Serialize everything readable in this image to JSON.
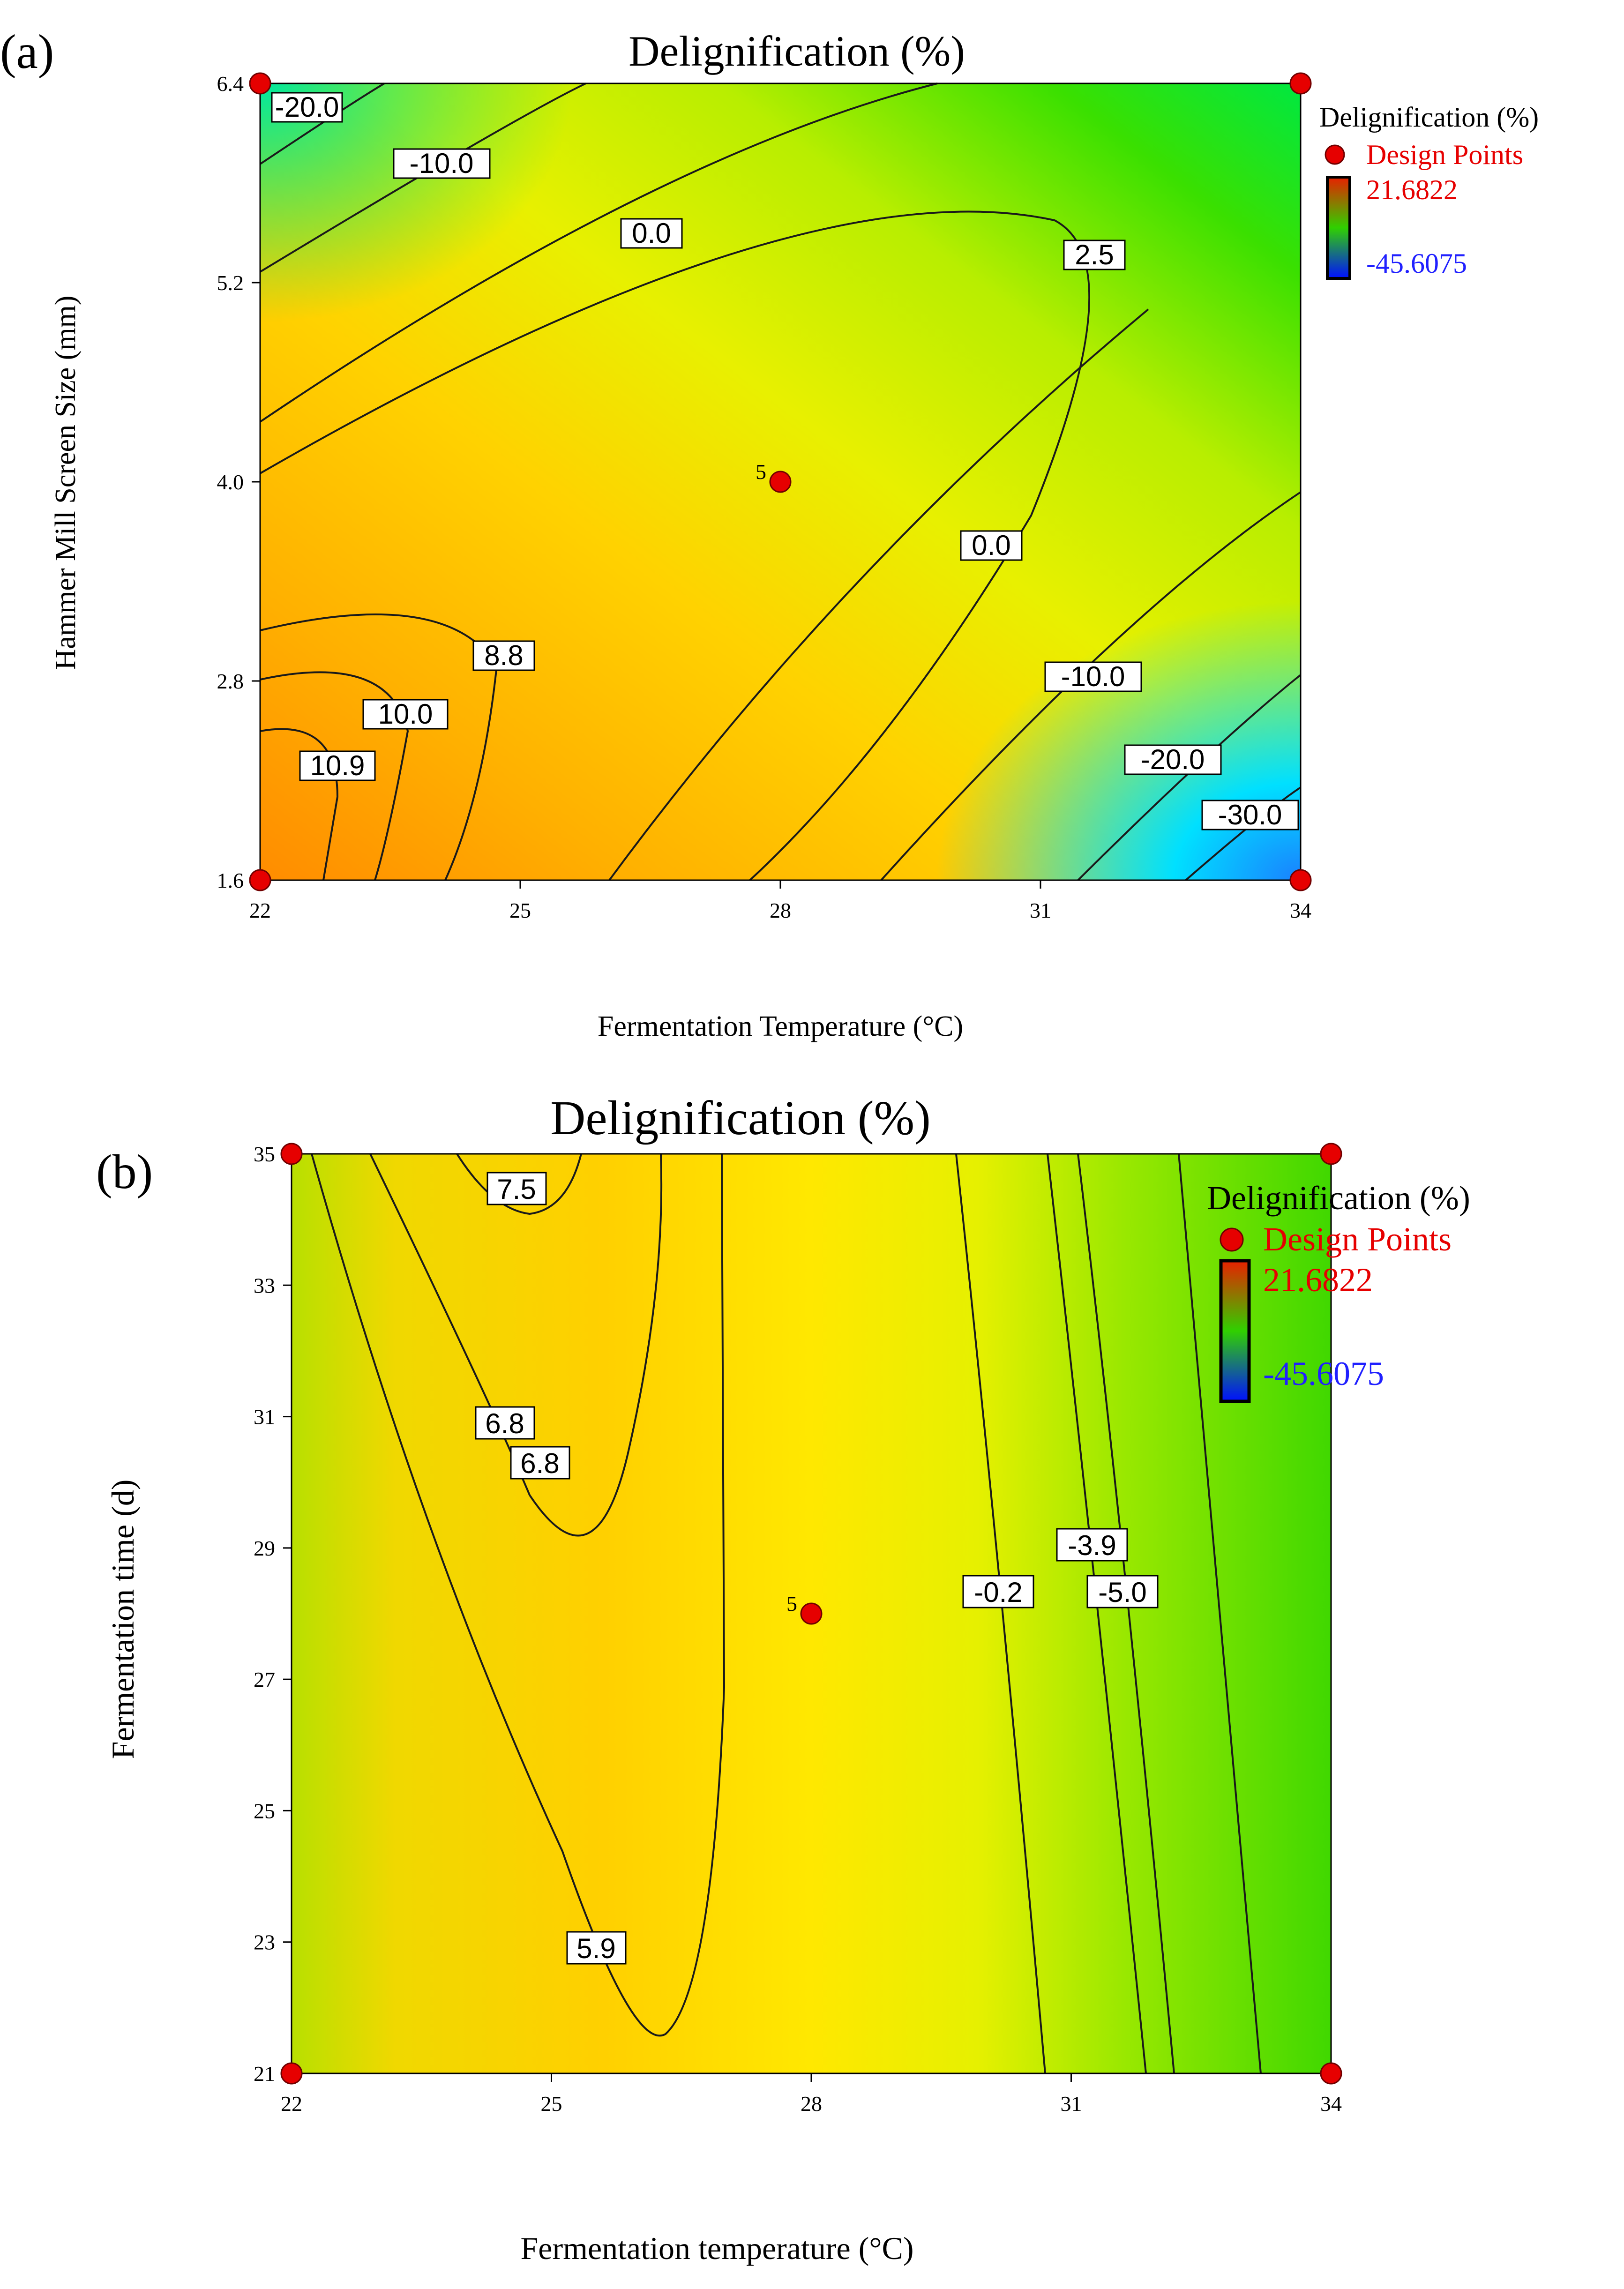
{
  "chart_data": [
    {
      "panel_label": "(a)",
      "type": "contour",
      "title": "Delignification (%)",
      "xlabel": "Fermentation Temperature (°C)",
      "ylabel": "Hammer Mill Screen Size (mm)",
      "xlim": [
        22,
        34
      ],
      "ylim": [
        1.6,
        6.4
      ],
      "xticks": [
        "22",
        "25",
        "28",
        "31",
        "34"
      ],
      "yticks": [
        "1.6",
        "2.8",
        "4.0",
        "5.2",
        "6.4"
      ],
      "legend": {
        "title": "Delignification (%)",
        "points_label": "Design Points",
        "max": "21.6822",
        "min": "-45.6075"
      },
      "contour_labels": [
        "-20.0",
        "-10.0",
        "0.0",
        "2.5",
        "0.0",
        "8.8",
        "10.0",
        "10.9",
        "-10.0",
        "-20.0",
        "-30.0"
      ],
      "design_points": [
        {
          "x": 22,
          "y": 6.4
        },
        {
          "x": 34,
          "y": 6.4
        },
        {
          "x": 22,
          "y": 1.6
        },
        {
          "x": 34,
          "y": 1.6
        },
        {
          "x": 28,
          "y": 4.0,
          "label": "5"
        }
      ]
    },
    {
      "panel_label": "(b)",
      "type": "contour",
      "title": "Delignification (%)",
      "xlabel": "Fermentation temperature (°C)",
      "ylabel": "Fermentation time     (d)",
      "xlim": [
        22,
        34
      ],
      "ylim": [
        21,
        35
      ],
      "xticks": [
        "22",
        "25",
        "28",
        "31",
        "34"
      ],
      "yticks": [
        "21",
        "23",
        "25",
        "27",
        "29",
        "31",
        "33",
        "35"
      ],
      "legend": {
        "title": "Delignification (%)",
        "points_label": "Design Points",
        "max": "21.6822",
        "min": "-45.6075"
      },
      "contour_labels": [
        "7.5",
        "6.8",
        "6.8",
        "5.9",
        "-0.2",
        "-3.9",
        "-5.0"
      ],
      "design_points": [
        {
          "x": 22,
          "y": 35
        },
        {
          "x": 34,
          "y": 35
        },
        {
          "x": 22,
          "y": 21
        },
        {
          "x": 34,
          "y": 21
        },
        {
          "x": 28,
          "y": 28,
          "label": "5"
        }
      ]
    }
  ],
  "colors": {
    "design_point": "#e60000",
    "legend_max": "#e60000",
    "legend_min": "#2020ff"
  }
}
